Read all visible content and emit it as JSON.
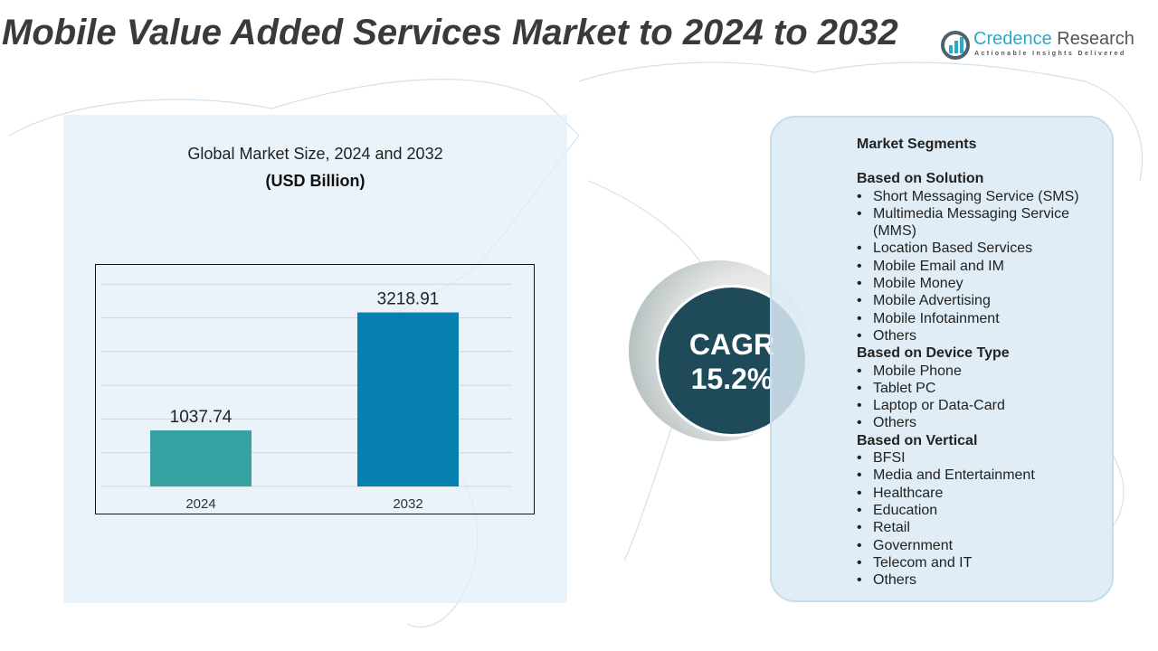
{
  "title": "Mobile Value Added Services Market to 2024 to 2032",
  "logo": {
    "name_part1": "Credence",
    "name_part2": " Research",
    "tagline": "Actionable Insights Delivered"
  },
  "chart_data": {
    "type": "bar",
    "title": "Global Market Size, 2024 and 2032",
    "subtitle": "(USD Billion)",
    "categories": [
      "2024",
      "2032"
    ],
    "values": [
      1037.74,
      3218.91
    ],
    "value_labels": [
      "1037.74",
      "3218.91"
    ],
    "colors": [
      "#35a3a1",
      "#0780b0"
    ],
    "ylim": [
      0,
      3500
    ],
    "grid": true
  },
  "cagr": {
    "label": "CAGR",
    "value": "15.2%"
  },
  "segments": {
    "title": "Market Segments",
    "groups": [
      {
        "heading": "Based on Solution",
        "items": [
          "Short Messaging Service (SMS)",
          "Multimedia Messaging Service (MMS)",
          "Location Based Services",
          "Mobile Email and IM",
          "Mobile Money",
          "Mobile Advertising",
          "Mobile Infotainment",
          "Others"
        ]
      },
      {
        "heading": "Based on Device Type",
        "items": [
          "Mobile Phone",
          "Tablet PC",
          "Laptop or Data-Card",
          "Others"
        ]
      },
      {
        "heading": "Based on Vertical",
        "items": [
          "BFSI",
          "Media and Entertainment",
          "Healthcare",
          "Education",
          "Retail",
          "Government",
          "Telecom and IT",
          "Others"
        ]
      }
    ]
  }
}
